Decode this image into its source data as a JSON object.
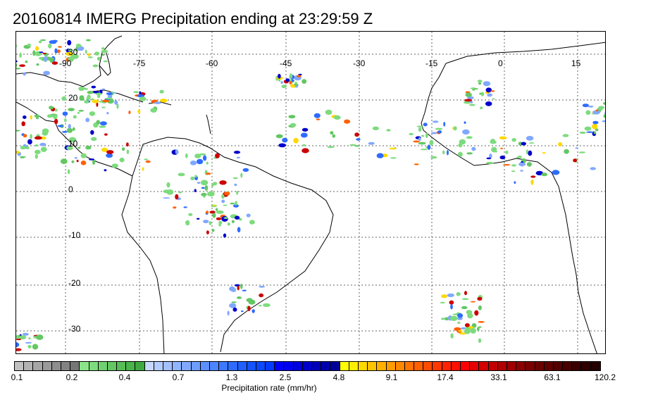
{
  "title": "20160814 IMERG Precipitation ending at 23:29:59 Z",
  "map": {
    "lon_labels": [
      "-90",
      "-75",
      "-60",
      "-45",
      "-30",
      "-15",
      "0",
      "15"
    ],
    "lat_labels": [
      "30",
      "20",
      "10",
      "0",
      "-10",
      "-20",
      "-30"
    ]
  },
  "colorbar": {
    "label": "Precipitation rate (mm/hr)",
    "tick_labels": [
      "0.1",
      "0.2",
      "0.4",
      "0.7",
      "1.3",
      "2.5",
      "4.8",
      "9.1",
      "17.4",
      "33.1",
      "63.1",
      "120.2"
    ],
    "colors": [
      "#c0c0c0",
      "#b2b2b2",
      "#a6a6a6",
      "#9a9a9a",
      "#8e8e8e",
      "#828282",
      "#767676",
      "#8ae58a",
      "#7ddb7d",
      "#70d170",
      "#63c763",
      "#57bd57",
      "#4ab34a",
      "#3ea93e",
      "#c6d8ff",
      "#b4ccff",
      "#a3c0ff",
      "#91b4ff",
      "#80a8ff",
      "#6e9cff",
      "#5d90ff",
      "#4d84ff",
      "#3d78ff",
      "#2e6cff",
      "#2060ff",
      "#1454ff",
      "#0b48ff",
      "#043cff",
      "#0000ff",
      "#0000ee",
      "#0000dd",
      "#0000cc",
      "#0000bb",
      "#0000aa",
      "#000099",
      "#ffff00",
      "#ffec00",
      "#ffd800",
      "#ffc400",
      "#ffb000",
      "#ff9c00",
      "#ff8800",
      "#ff7400",
      "#ff6000",
      "#ff4c00",
      "#ff3800",
      "#ff2400",
      "#ff1000",
      "#ff0000",
      "#e60000",
      "#d40000",
      "#c20000",
      "#b00000",
      "#9e0000",
      "#8c0000",
      "#7a0000",
      "#6a0000",
      "#5e0000",
      "#520000",
      "#460000",
      "#3a0000",
      "#2e0000",
      "#230000"
    ]
  }
}
